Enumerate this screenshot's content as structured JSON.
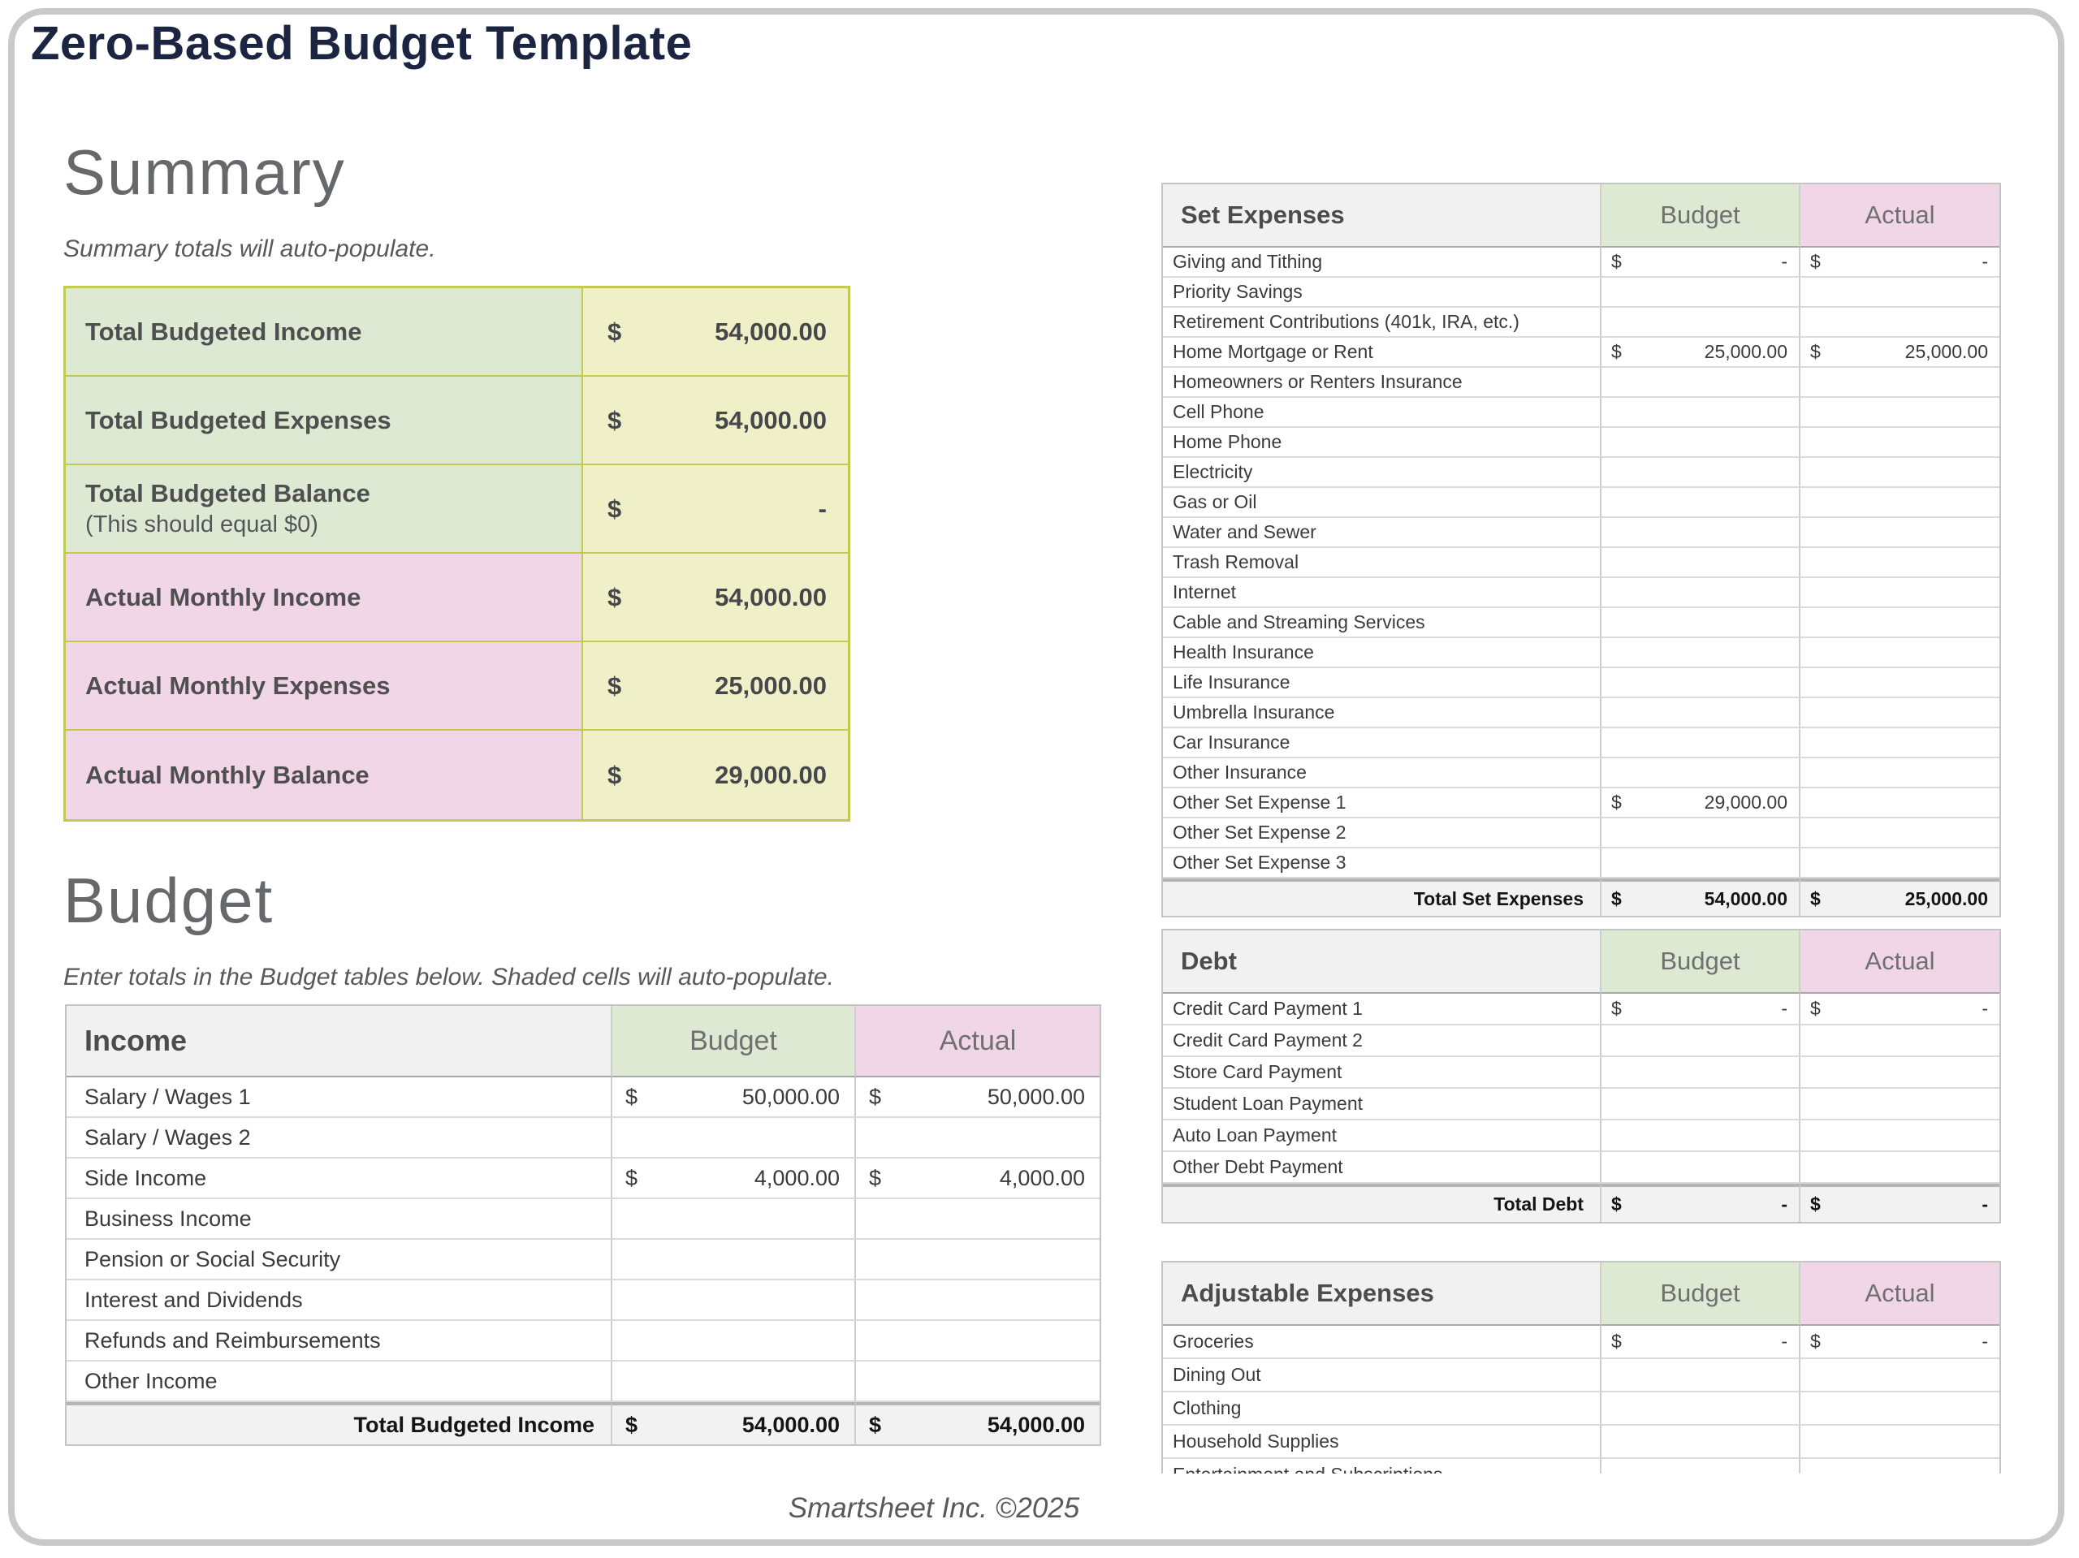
{
  "theme": {
    "title_color": "#1b2440",
    "heading_color": "#66686b",
    "green": "#dde9d2",
    "pink": "#f1d6e7",
    "yellow": "#eff0c7",
    "olive": "#c3ca54",
    "hdr_gray": "#f1f1f1",
    "total_gray": "#f2f2f2"
  },
  "page": {
    "title": "Zero-Based Budget Template",
    "footer": "Smartsheet Inc. ©2025"
  },
  "summary": {
    "heading": "Summary",
    "subtitle": "Summary totals will auto-populate.",
    "rows": [
      {
        "label": "Total Budgeted Income",
        "sublabel": null,
        "tone": "green",
        "cur": "$",
        "amount": "54,000.00"
      },
      {
        "label": "Total Budgeted Expenses",
        "sublabel": null,
        "tone": "green",
        "cur": "$",
        "amount": "54,000.00"
      },
      {
        "label": "Total Budgeted Balance",
        "sublabel": "(This should equal $0)",
        "tone": "green",
        "cur": "$",
        "amount": "-"
      },
      {
        "label": "Actual Monthly Income",
        "sublabel": null,
        "tone": "pink",
        "cur": "$",
        "amount": "54,000.00"
      },
      {
        "label": "Actual Monthly Expenses",
        "sublabel": null,
        "tone": "pink",
        "cur": "$",
        "amount": "25,000.00"
      },
      {
        "label": "Actual Monthly Balance",
        "sublabel": null,
        "tone": "pink",
        "cur": "$",
        "amount": "29,000.00"
      }
    ]
  },
  "budget": {
    "heading": "Budget",
    "subtitle": "Enter totals in the Budget tables below. Shaded cells will auto-populate."
  },
  "tables": {
    "income": {
      "title": "Income",
      "budget_header": "Budget",
      "actual_header": "Actual",
      "rows": [
        {
          "label": "Salary / Wages 1",
          "budget": {
            "cur": "$",
            "amount": "50,000.00"
          },
          "actual": {
            "cur": "$",
            "amount": "50,000.00"
          }
        },
        {
          "label": "Salary / Wages 2",
          "budget": null,
          "actual": null
        },
        {
          "label": "Side Income",
          "budget": {
            "cur": "$",
            "amount": "4,000.00"
          },
          "actual": {
            "cur": "$",
            "amount": "4,000.00"
          }
        },
        {
          "label": "Business Income",
          "budget": null,
          "actual": null
        },
        {
          "label": "Pension or Social Security",
          "budget": null,
          "actual": null
        },
        {
          "label": "Interest and Dividends",
          "budget": null,
          "actual": null
        },
        {
          "label": "Refunds and Reimbursements",
          "budget": null,
          "actual": null
        },
        {
          "label": "Other Income",
          "budget": null,
          "actual": null
        }
      ],
      "total": {
        "label": "Total Budgeted Income",
        "budget": {
          "cur": "$",
          "amount": "54,000.00"
        },
        "actual": {
          "cur": "$",
          "amount": "54,000.00"
        }
      }
    },
    "set_expenses": {
      "title": "Set Expenses",
      "budget_header": "Budget",
      "actual_header": "Actual",
      "rows": [
        {
          "label": "Giving and Tithing",
          "budget": {
            "cur": "$",
            "amount": "-"
          },
          "actual": {
            "cur": "$",
            "amount": "-"
          }
        },
        {
          "label": "Priority Savings",
          "budget": null,
          "actual": null
        },
        {
          "label": "Retirement Contributions (401k, IRA, etc.)",
          "budget": null,
          "actual": null
        },
        {
          "label": "Home Mortgage or Rent",
          "budget": {
            "cur": "$",
            "amount": "25,000.00"
          },
          "actual": {
            "cur": "$",
            "amount": "25,000.00"
          }
        },
        {
          "label": "Homeowners or Renters Insurance",
          "budget": null,
          "actual": null
        },
        {
          "label": "Cell Phone",
          "budget": null,
          "actual": null
        },
        {
          "label": "Home Phone",
          "budget": null,
          "actual": null
        },
        {
          "label": "Electricity",
          "budget": null,
          "actual": null
        },
        {
          "label": "Gas or Oil",
          "budget": null,
          "actual": null
        },
        {
          "label": "Water and Sewer",
          "budget": null,
          "actual": null
        },
        {
          "label": "Trash Removal",
          "budget": null,
          "actual": null
        },
        {
          "label": "Internet",
          "budget": null,
          "actual": null
        },
        {
          "label": "Cable and Streaming Services",
          "budget": null,
          "actual": null
        },
        {
          "label": "Health Insurance",
          "budget": null,
          "actual": null
        },
        {
          "label": "Life Insurance",
          "budget": null,
          "actual": null
        },
        {
          "label": "Umbrella Insurance",
          "budget": null,
          "actual": null
        },
        {
          "label": "Car Insurance",
          "budget": null,
          "actual": null
        },
        {
          "label": "Other Insurance",
          "budget": null,
          "actual": null
        },
        {
          "label": "Other Set Expense 1",
          "budget": {
            "cur": "$",
            "amount": "29,000.00"
          },
          "actual": null
        },
        {
          "label": "Other Set Expense 2",
          "budget": null,
          "actual": null
        },
        {
          "label": "Other Set Expense 3",
          "budget": null,
          "actual": null
        }
      ],
      "total": {
        "label": "Total Set Expenses",
        "budget": {
          "cur": "$",
          "amount": "54,000.00"
        },
        "actual": {
          "cur": "$",
          "amount": "25,000.00"
        }
      }
    },
    "debt": {
      "title": "Debt",
      "budget_header": "Budget",
      "actual_header": "Actual",
      "rows": [
        {
          "label": "Credit Card Payment 1",
          "budget": {
            "cur": "$",
            "amount": "-"
          },
          "actual": {
            "cur": "$",
            "amount": "-"
          }
        },
        {
          "label": "Credit Card Payment 2",
          "budget": null,
          "actual": null
        },
        {
          "label": "Store Card Payment",
          "budget": null,
          "actual": null
        },
        {
          "label": "Student Loan Payment",
          "budget": null,
          "actual": null
        },
        {
          "label": "Auto Loan Payment",
          "budget": null,
          "actual": null
        },
        {
          "label": "Other Debt Payment",
          "budget": null,
          "actual": null
        }
      ],
      "total": {
        "label": "Total Debt",
        "budget": {
          "cur": "$",
          "amount": "-"
        },
        "actual": {
          "cur": "$",
          "amount": "-"
        }
      }
    },
    "adjustable": {
      "title": "Adjustable Expenses",
      "budget_header": "Budget",
      "actual_header": "Actual",
      "rows": [
        {
          "label": "Groceries",
          "budget": {
            "cur": "$",
            "amount": "-"
          },
          "actual": {
            "cur": "$",
            "amount": "-"
          }
        },
        {
          "label": "Dining Out",
          "budget": null,
          "actual": null
        },
        {
          "label": "Clothing",
          "budget": null,
          "actual": null
        },
        {
          "label": "Household Supplies",
          "budget": null,
          "actual": null
        },
        {
          "label": "Entertainment and Subscriptions",
          "budget": null,
          "actual": null
        }
      ],
      "total": null
    }
  }
}
